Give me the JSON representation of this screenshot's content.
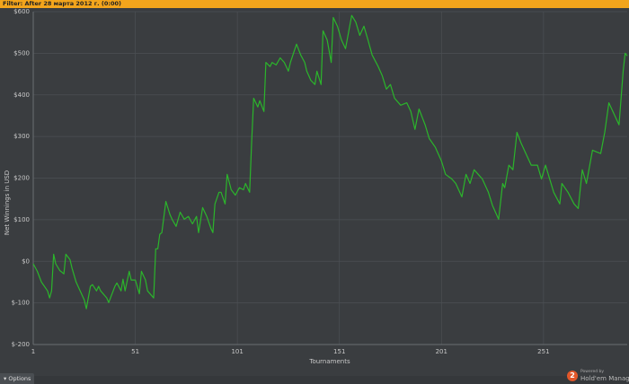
{
  "ui": {
    "filter": "Filter: After 28 марта 2012 г. (0:00)",
    "options": "Options",
    "logo": "2",
    "powered_by": "Powered by",
    "brand": "Hold'em Manager"
  },
  "chart_data": {
    "type": "line",
    "x_label": "Tournaments",
    "y_label": "Net Winnings in USD",
    "color": "#2bb52b",
    "grid": true,
    "xlim": [
      1,
      292
    ],
    "xticks": [
      1,
      51,
      101,
      151,
      201,
      251
    ],
    "ylim": [
      -200,
      600
    ],
    "yticks": [
      {
        "value": -200,
        "label": "$-200"
      },
      {
        "value": -100,
        "label": "$-100"
      },
      {
        "value": 0,
        "label": "$0"
      },
      {
        "value": 100,
        "label": "$100"
      },
      {
        "value": 200,
        "label": "$200"
      },
      {
        "value": 300,
        "label": "$300"
      },
      {
        "value": 400,
        "label": "$400"
      },
      {
        "value": 500,
        "label": "$500"
      },
      {
        "value": 600,
        "label": "$600"
      }
    ],
    "x": [
      1,
      3,
      5,
      8,
      9,
      10,
      11,
      12,
      14,
      16,
      17,
      19,
      20,
      22,
      24,
      26,
      27,
      29,
      30,
      32,
      33,
      34,
      37,
      38,
      41,
      42,
      44,
      45,
      46,
      48,
      49,
      51,
      53,
      54,
      56,
      57,
      60,
      61,
      62,
      63,
      64,
      66,
      68,
      69,
      71,
      73,
      75,
      77,
      79,
      81,
      82,
      84,
      86,
      88,
      89,
      90,
      92,
      93,
      95,
      96,
      98,
      100,
      102,
      104,
      105,
      107,
      108,
      109,
      111,
      112,
      114,
      115,
      117,
      118,
      120,
      122,
      124,
      126,
      127,
      130,
      132,
      134,
      135,
      137,
      139,
      140,
      142,
      143,
      145,
      147,
      148,
      150,
      152,
      154,
      157,
      159,
      161,
      163,
      165,
      167,
      170,
      172,
      174,
      176,
      178,
      181,
      184,
      186,
      188,
      190,
      193,
      195,
      198,
      201,
      203,
      206,
      208,
      211,
      213,
      215,
      217,
      219,
      221,
      224,
      226,
      229,
      231,
      232,
      234,
      236,
      238,
      240,
      243,
      245,
      248,
      250,
      252,
      254,
      256,
      259,
      260,
      263,
      266,
      268,
      270,
      272,
      275,
      277,
      279,
      281,
      283,
      286,
      288,
      290,
      291,
      292
    ],
    "values": [
      -6,
      -24,
      -50,
      -71,
      -88,
      -71,
      17,
      -6,
      -22,
      -30,
      17,
      4,
      -17,
      -50,
      -71,
      -93,
      -114,
      -60,
      -56,
      -71,
      -60,
      -71,
      -88,
      -99,
      -60,
      -52,
      -71,
      -43,
      -71,
      -24,
      -45,
      -45,
      -78,
      -24,
      -45,
      -71,
      -88,
      30,
      30,
      65,
      69,
      144,
      112,
      101,
      84,
      118,
      101,
      108,
      90,
      108,
      69,
      129,
      108,
      80,
      69,
      138,
      166,
      166,
      138,
      209,
      172,
      159,
      177,
      172,
      187,
      166,
      284,
      392,
      371,
      386,
      360,
      478,
      468,
      478,
      472,
      489,
      478,
      457,
      478,
      522,
      496,
      478,
      457,
      435,
      425,
      457,
      425,
      554,
      532,
      478,
      586,
      565,
      532,
      511,
      591,
      575,
      543,
      565,
      532,
      496,
      468,
      446,
      414,
      425,
      392,
      375,
      381,
      360,
      317,
      366,
      328,
      295,
      274,
      241,
      209,
      198,
      187,
      155,
      209,
      187,
      220,
      209,
      198,
      166,
      134,
      101,
      187,
      177,
      231,
      220,
      310,
      284,
      252,
      231,
      231,
      198,
      231,
      198,
      166,
      138,
      187,
      166,
      138,
      127,
      220,
      187,
      267,
      263,
      259,
      310,
      381,
      349,
      328,
      457,
      500,
      494
    ]
  }
}
